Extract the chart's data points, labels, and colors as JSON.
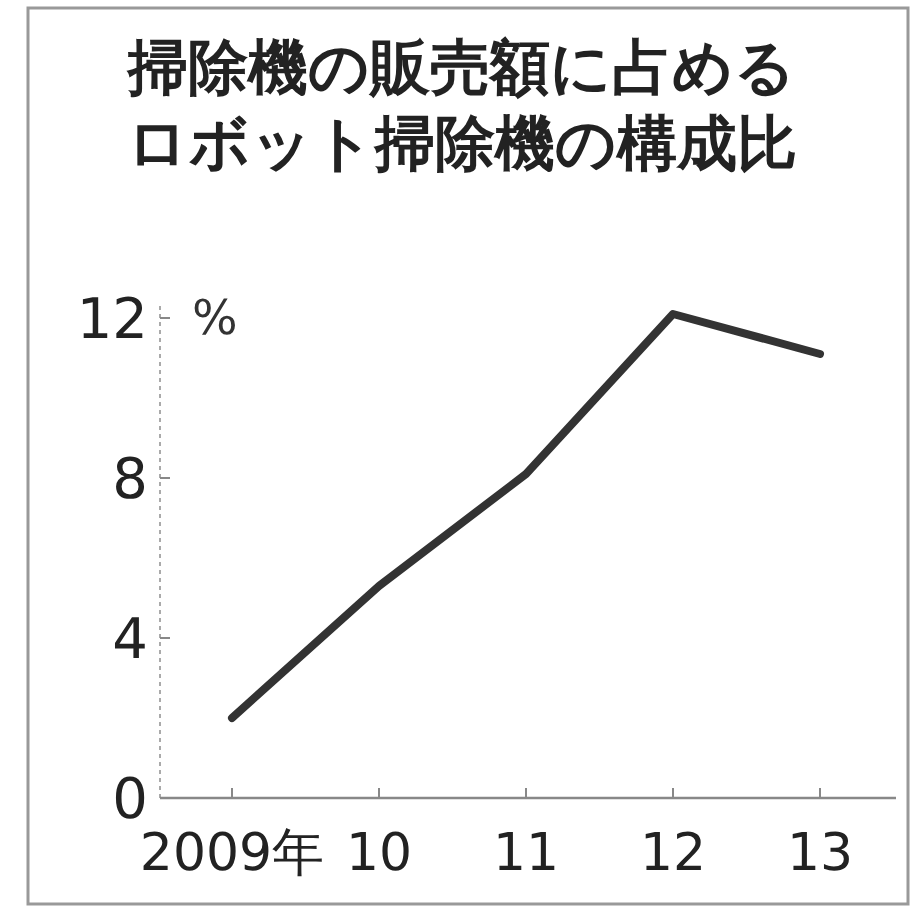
{
  "chart_data": {
    "type": "line",
    "title": "掃除機の販売額に占めるロボット掃除機の構成比",
    "ylabel": "%",
    "categories": [
      "2009年",
      "10",
      "11",
      "12",
      "13"
    ],
    "series": [
      {
        "color": "#333333",
        "values": [
          2.0,
          5.3,
          8.1,
          12.1,
          11.1
        ]
      }
    ],
    "ylim": [
      0,
      12.3
    ],
    "yticks": [
      0,
      4,
      8,
      12
    ],
    "grid": false,
    "marker": "none",
    "line_style": "solid"
  }
}
